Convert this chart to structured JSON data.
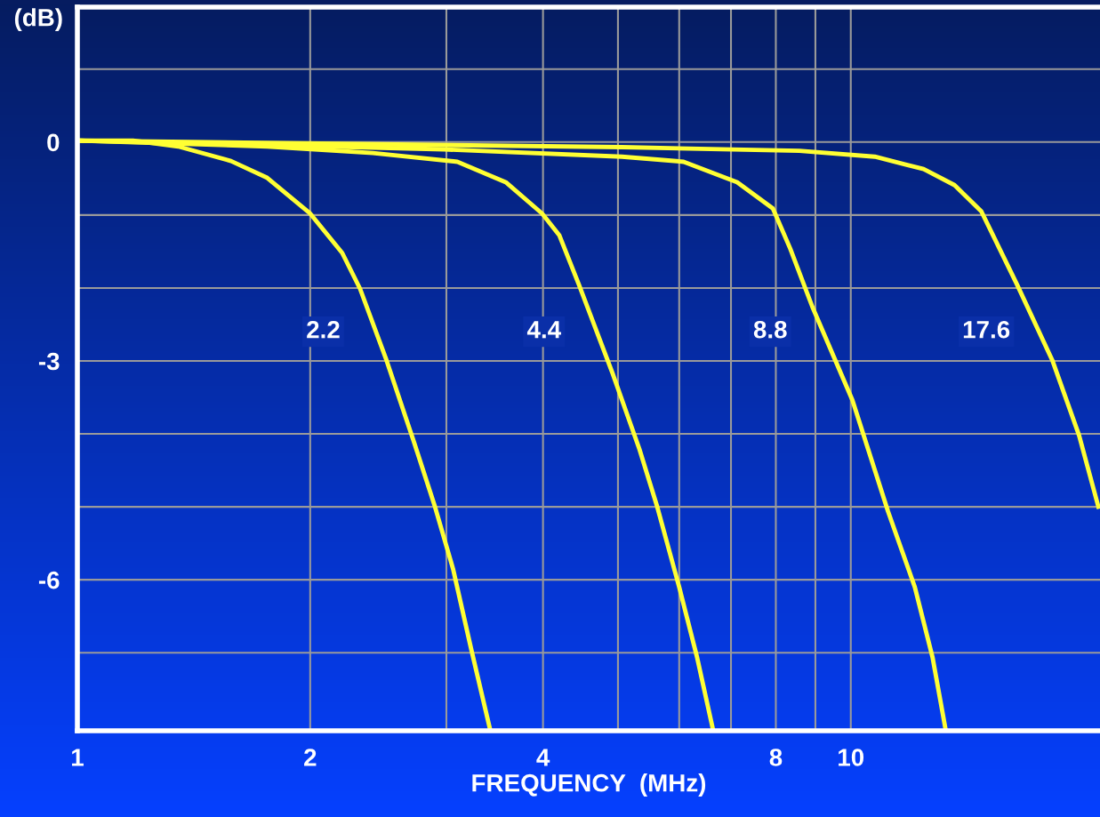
{
  "chart_data": {
    "type": "line",
    "xlabel": "FREQUENCY  (MHz)",
    "ylabel": "(dB)",
    "log": "x",
    "grid": true,
    "legend": false,
    "marker": "none",
    "line_style": "solid",
    "xlim": [
      1,
      21
    ],
    "ylim": [
      -8.07,
      1.85
    ],
    "xticks": [
      1,
      2,
      {
        "value": 3,
        "label": null
      },
      4,
      {
        "value": 5,
        "label": null
      },
      {
        "value": 6,
        "label": null
      },
      {
        "value": 7,
        "label": null
      },
      8,
      {
        "value": 9,
        "label": null
      },
      10
    ],
    "yticks": [
      {
        "value": -7,
        "label": null
      },
      -6,
      {
        "value": -5,
        "label": null
      },
      {
        "value": -4,
        "label": null
      },
      -3,
      {
        "value": -2,
        "label": null
      },
      {
        "value": -1,
        "label": null
      },
      0,
      {
        "value": 1,
        "label": null
      }
    ],
    "series": [
      {
        "name": "2.2",
        "color": "#ffff33",
        "x": [
          1,
          1.18,
          1.35,
          1.58,
          1.76,
          2.0,
          2.2,
          2.32,
          2.51,
          2.72,
          2.9,
          3.06,
          3.23,
          3.42
        ],
        "values": [
          0.02,
          0.02,
          -0.06,
          -0.26,
          -0.49,
          -0.98,
          -1.52,
          -2.01,
          -2.99,
          -4.09,
          -5.0,
          -5.85,
          -6.95,
          -8.07
        ]
      },
      {
        "name": "4.4",
        "color": "#ffff33",
        "x": [
          1,
          1.76,
          2.41,
          3.1,
          3.58,
          3.99,
          4.2,
          4.45,
          4.92,
          5.33,
          5.62,
          6.0,
          6.33,
          6.64
        ],
        "values": [
          0.02,
          -0.06,
          -0.15,
          -0.27,
          -0.55,
          -0.98,
          -1.28,
          -1.95,
          -3.17,
          -4.21,
          -5.0,
          -6.1,
          -7.07,
          -8.07
        ]
      },
      {
        "name": "8.8",
        "color": "#ffff33",
        "x": [
          1,
          2.98,
          5.06,
          6.08,
          7.13,
          7.93,
          8.35,
          8.92,
          10.05,
          11.17,
          12.1,
          12.76,
          13.27
        ],
        "values": [
          0.02,
          -0.1,
          -0.2,
          -0.27,
          -0.55,
          -0.91,
          -1.46,
          -2.26,
          -3.54,
          -5.06,
          -6.1,
          -7.07,
          -8.07
        ]
      },
      {
        "name": "17.6",
        "color": "#ffff33",
        "x": [
          1,
          5.06,
          8.58,
          10.74,
          12.42,
          13.62,
          14.75,
          16.4,
          18.22,
          19.73,
          20.9
        ],
        "values": [
          0.02,
          -0.07,
          -0.12,
          -0.2,
          -0.37,
          -0.59,
          -0.95,
          -1.95,
          -2.99,
          -4.02,
          -5.0
        ]
      }
    ]
  }
}
